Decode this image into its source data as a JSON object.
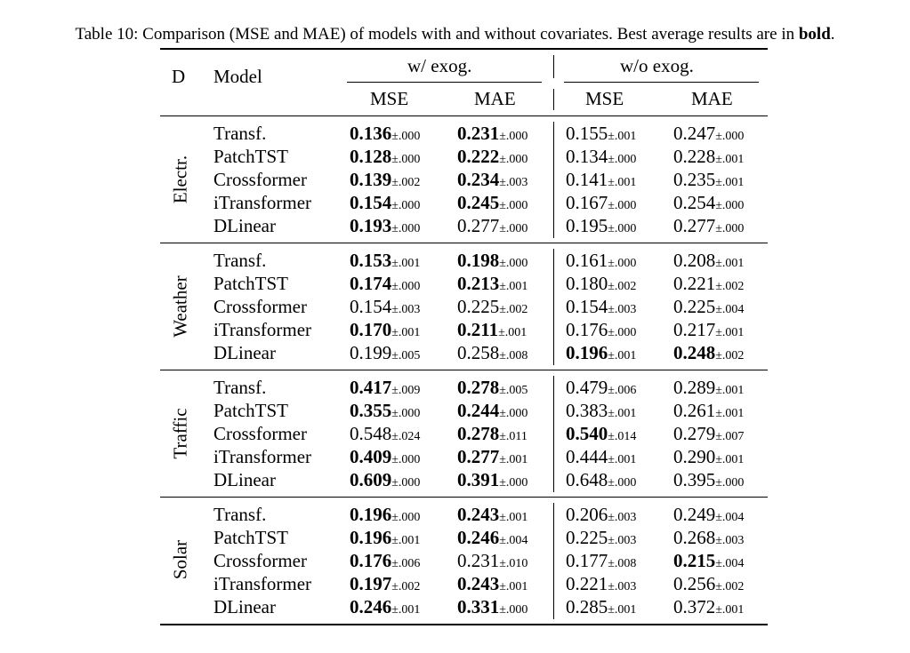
{
  "caption": {
    "prefix": "Table 10: Comparison (MSE and MAE) of models with and without covariates. Best average results are in ",
    "bold": "bold",
    "suffix": "."
  },
  "headers": {
    "dataset": "D",
    "model": "Model",
    "group_with": "w/ exog.",
    "group_without": "w/o exog.",
    "mse": "MSE",
    "mae": "MAE"
  },
  "groups": [
    {
      "name": "Electr.",
      "rows": [
        {
          "model": "Transf.",
          "cells": [
            {
              "m": "0.136",
              "s": "±.000",
              "b": true
            },
            {
              "m": "0.231",
              "s": "±.000",
              "b": true
            },
            {
              "m": "0.155",
              "s": "±.001",
              "b": false
            },
            {
              "m": "0.247",
              "s": "±.000",
              "b": false
            }
          ]
        },
        {
          "model": "PatchTST",
          "cells": [
            {
              "m": "0.128",
              "s": "±.000",
              "b": true
            },
            {
              "m": "0.222",
              "s": "±.000",
              "b": true
            },
            {
              "m": "0.134",
              "s": "±.000",
              "b": false
            },
            {
              "m": "0.228",
              "s": "±.001",
              "b": false
            }
          ]
        },
        {
          "model": "Crossformer",
          "cells": [
            {
              "m": "0.139",
              "s": "±.002",
              "b": true
            },
            {
              "m": "0.234",
              "s": "±.003",
              "b": true
            },
            {
              "m": "0.141",
              "s": "±.001",
              "b": false
            },
            {
              "m": "0.235",
              "s": "±.001",
              "b": false
            }
          ]
        },
        {
          "model": "iTransformer",
          "cells": [
            {
              "m": "0.154",
              "s": "±.000",
              "b": true
            },
            {
              "m": "0.245",
              "s": "±.000",
              "b": true
            },
            {
              "m": "0.167",
              "s": "±.000",
              "b": false
            },
            {
              "m": "0.254",
              "s": "±.000",
              "b": false
            }
          ]
        },
        {
          "model": "DLinear",
          "cells": [
            {
              "m": "0.193",
              "s": "±.000",
              "b": true
            },
            {
              "m": "0.277",
              "s": "±.000",
              "b": false
            },
            {
              "m": "0.195",
              "s": "±.000",
              "b": false
            },
            {
              "m": "0.277",
              "s": "±.000",
              "b": false
            }
          ]
        }
      ]
    },
    {
      "name": "Weather",
      "rows": [
        {
          "model": "Transf.",
          "cells": [
            {
              "m": "0.153",
              "s": "±.001",
              "b": true
            },
            {
              "m": "0.198",
              "s": "±.000",
              "b": true
            },
            {
              "m": "0.161",
              "s": "±.000",
              "b": false
            },
            {
              "m": "0.208",
              "s": "±.001",
              "b": false
            }
          ]
        },
        {
          "model": "PatchTST",
          "cells": [
            {
              "m": "0.174",
              "s": "±.000",
              "b": true
            },
            {
              "m": "0.213",
              "s": "±.001",
              "b": true
            },
            {
              "m": "0.180",
              "s": "±.002",
              "b": false
            },
            {
              "m": "0.221",
              "s": "±.002",
              "b": false
            }
          ]
        },
        {
          "model": "Crossformer",
          "cells": [
            {
              "m": "0.154",
              "s": "±.003",
              "b": false
            },
            {
              "m": "0.225",
              "s": "±.002",
              "b": false
            },
            {
              "m": "0.154",
              "s": "±.003",
              "b": false
            },
            {
              "m": "0.225",
              "s": "±.004",
              "b": false
            }
          ]
        },
        {
          "model": "iTransformer",
          "cells": [
            {
              "m": "0.170",
              "s": "±.001",
              "b": true
            },
            {
              "m": "0.211",
              "s": "±.001",
              "b": true
            },
            {
              "m": "0.176",
              "s": "±.000",
              "b": false
            },
            {
              "m": "0.217",
              "s": "±.001",
              "b": false
            }
          ]
        },
        {
          "model": "DLinear",
          "cells": [
            {
              "m": "0.199",
              "s": "±.005",
              "b": false
            },
            {
              "m": "0.258",
              "s": "±.008",
              "b": false
            },
            {
              "m": "0.196",
              "s": "±.001",
              "b": true
            },
            {
              "m": "0.248",
              "s": "±.002",
              "b": true
            }
          ]
        }
      ]
    },
    {
      "name": "Traffic",
      "rows": [
        {
          "model": "Transf.",
          "cells": [
            {
              "m": "0.417",
              "s": "±.009",
              "b": true
            },
            {
              "m": "0.278",
              "s": "±.005",
              "b": true
            },
            {
              "m": "0.479",
              "s": "±.006",
              "b": false
            },
            {
              "m": "0.289",
              "s": "±.001",
              "b": false
            }
          ]
        },
        {
          "model": "PatchTST",
          "cells": [
            {
              "m": "0.355",
              "s": "±.000",
              "b": true
            },
            {
              "m": "0.244",
              "s": "±.000",
              "b": true
            },
            {
              "m": "0.383",
              "s": "±.001",
              "b": false
            },
            {
              "m": "0.261",
              "s": "±.001",
              "b": false
            }
          ]
        },
        {
          "model": "Crossformer",
          "cells": [
            {
              "m": "0.548",
              "s": "±.024",
              "b": false
            },
            {
              "m": "0.278",
              "s": "±.011",
              "b": true
            },
            {
              "m": "0.540",
              "s": "±.014",
              "b": true
            },
            {
              "m": "0.279",
              "s": "±.007",
              "b": false
            }
          ]
        },
        {
          "model": "iTransformer",
          "cells": [
            {
              "m": "0.409",
              "s": "±.000",
              "b": true
            },
            {
              "m": "0.277",
              "s": "±.001",
              "b": true
            },
            {
              "m": "0.444",
              "s": "±.001",
              "b": false
            },
            {
              "m": "0.290",
              "s": "±.001",
              "b": false
            }
          ]
        },
        {
          "model": "DLinear",
          "cells": [
            {
              "m": "0.609",
              "s": "±.000",
              "b": true
            },
            {
              "m": "0.391",
              "s": "±.000",
              "b": true
            },
            {
              "m": "0.648",
              "s": "±.000",
              "b": false
            },
            {
              "m": "0.395",
              "s": "±.000",
              "b": false
            }
          ]
        }
      ]
    },
    {
      "name": "Solar",
      "rows": [
        {
          "model": "Transf.",
          "cells": [
            {
              "m": "0.196",
              "s": "±.000",
              "b": true
            },
            {
              "m": "0.243",
              "s": "±.001",
              "b": true
            },
            {
              "m": "0.206",
              "s": "±.003",
              "b": false
            },
            {
              "m": "0.249",
              "s": "±.004",
              "b": false
            }
          ]
        },
        {
          "model": "PatchTST",
          "cells": [
            {
              "m": "0.196",
              "s": "±.001",
              "b": true
            },
            {
              "m": "0.246",
              "s": "±.004",
              "b": true
            },
            {
              "m": "0.225",
              "s": "±.003",
              "b": false
            },
            {
              "m": "0.268",
              "s": "±.003",
              "b": false
            }
          ]
        },
        {
          "model": "Crossformer",
          "cells": [
            {
              "m": "0.176",
              "s": "±.006",
              "b": true
            },
            {
              "m": "0.231",
              "s": "±.010",
              "b": false
            },
            {
              "m": "0.177",
              "s": "±.008",
              "b": false
            },
            {
              "m": "0.215",
              "s": "±.004",
              "b": true
            }
          ]
        },
        {
          "model": "iTransformer",
          "cells": [
            {
              "m": "0.197",
              "s": "±.002",
              "b": true
            },
            {
              "m": "0.243",
              "s": "±.001",
              "b": true
            },
            {
              "m": "0.221",
              "s": "±.003",
              "b": false
            },
            {
              "m": "0.256",
              "s": "±.002",
              "b": false
            }
          ]
        },
        {
          "model": "DLinear",
          "cells": [
            {
              "m": "0.246",
              "s": "±.001",
              "b": true
            },
            {
              "m": "0.331",
              "s": "±.000",
              "b": true
            },
            {
              "m": "0.285",
              "s": "±.001",
              "b": false
            },
            {
              "m": "0.372",
              "s": "±.001",
              "b": false
            }
          ]
        }
      ]
    }
  ]
}
